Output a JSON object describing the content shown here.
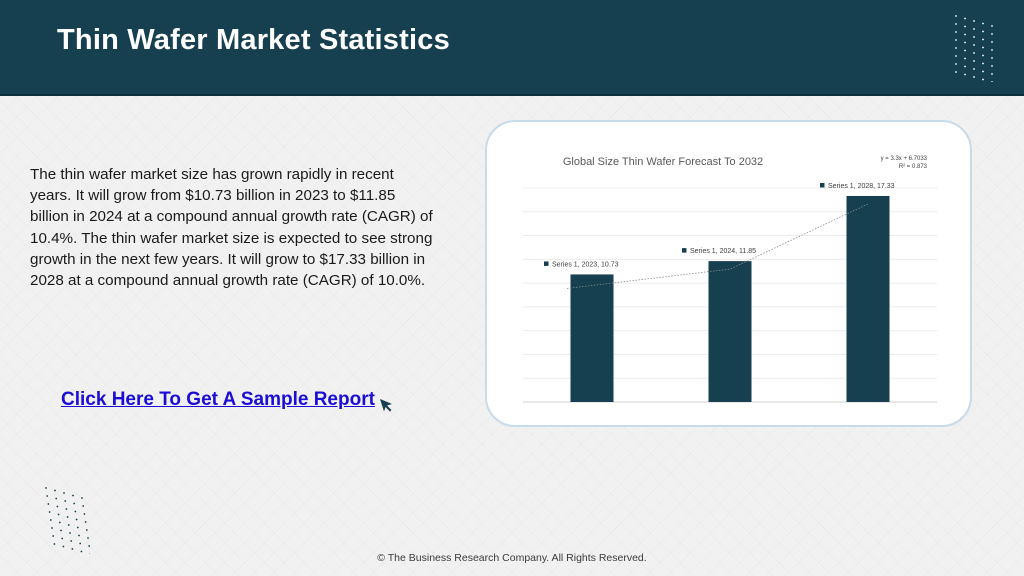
{
  "header": {
    "title": "Thin Wafer Market Statistics"
  },
  "body": {
    "description": "The thin wafer market size has grown rapidly in recent years. It will grow from $10.73 billion in 2023 to $11.85 billion in 2024 at a compound annual growth rate (CAGR) of 10.4%. The thin wafer market size is expected to see strong growth in the next few years. It will grow to $17.33 billion in 2028 at a compound annual growth rate (CAGR) of 10.0%.",
    "sample_link": "Click Here To Get A Sample Report"
  },
  "footer": {
    "copyright": "© The Business Research Company. All Rights Reserved."
  },
  "colors": {
    "header_bg": "#163f50",
    "bar": "#163f50",
    "link": "#1a0dd8"
  },
  "icons": {
    "cursor": "cursor-arrow-icon"
  },
  "chart_data": {
    "type": "bar",
    "title": "Global Size  Thin Wafer Forecast To 2032",
    "categories": [
      "2023",
      "2024",
      "2028"
    ],
    "series": [
      {
        "name": "Series 1",
        "values": [
          10.73,
          11.85,
          17.33
        ]
      }
    ],
    "data_labels": [
      "Series 1, 2023, 10.73",
      "Series 1, 2024, 11.85",
      "Series 1, 2028, 17.33"
    ],
    "trendline": {
      "equation": "y = 3.3x + 6.7033",
      "r_squared": "R² = 0.873",
      "style": "dotted linear"
    },
    "ylim": [
      0,
      18
    ],
    "grid": true,
    "legend": "none"
  }
}
